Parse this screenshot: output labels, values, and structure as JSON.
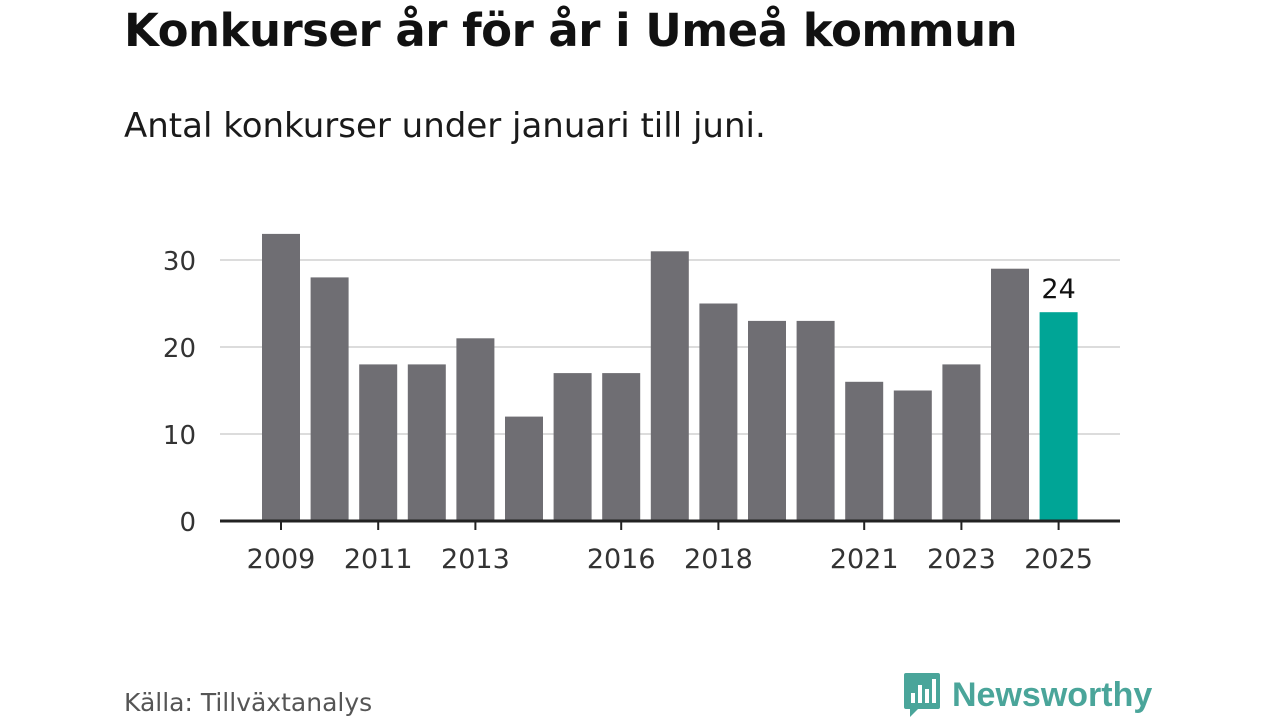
{
  "header": {
    "title": "Konkurser år för år i Umeå kommun",
    "subtitle": "Antal konkurser under januari till juni."
  },
  "footer": {
    "source": "Källa: Tillväxtanalys",
    "brand": "Newsworthy"
  },
  "colors": {
    "bar": "#6f6e73",
    "highlight": "#00a596",
    "grid": "#dcdcdc",
    "axis": "#222222",
    "brand": "#4aa59a"
  },
  "chart_data": {
    "type": "bar",
    "title": "Konkurser år för år i Umeå kommun",
    "subtitle": "Antal konkurser under januari till juni.",
    "xlabel": "",
    "ylabel": "",
    "categories": [
      "2009",
      "2010",
      "2011",
      "2012",
      "2013",
      "2014",
      "2015",
      "2016",
      "2017",
      "2018",
      "2019",
      "2020",
      "2021",
      "2022",
      "2023",
      "2024",
      "2025"
    ],
    "values": [
      33,
      28,
      18,
      18,
      21,
      12,
      17,
      17,
      31,
      25,
      23,
      23,
      16,
      15,
      18,
      29,
      24
    ],
    "highlight_category": "2025",
    "data_labels": [
      {
        "category": "2025",
        "text": "24"
      }
    ],
    "x_tick_labels": [
      "2009",
      "2011",
      "2013",
      "2016",
      "2018",
      "2021",
      "2023",
      "2025"
    ],
    "y_ticks": [
      0,
      10,
      20,
      30
    ],
    "ylim": [
      0,
      35
    ],
    "grid": true,
    "legend": "none"
  }
}
